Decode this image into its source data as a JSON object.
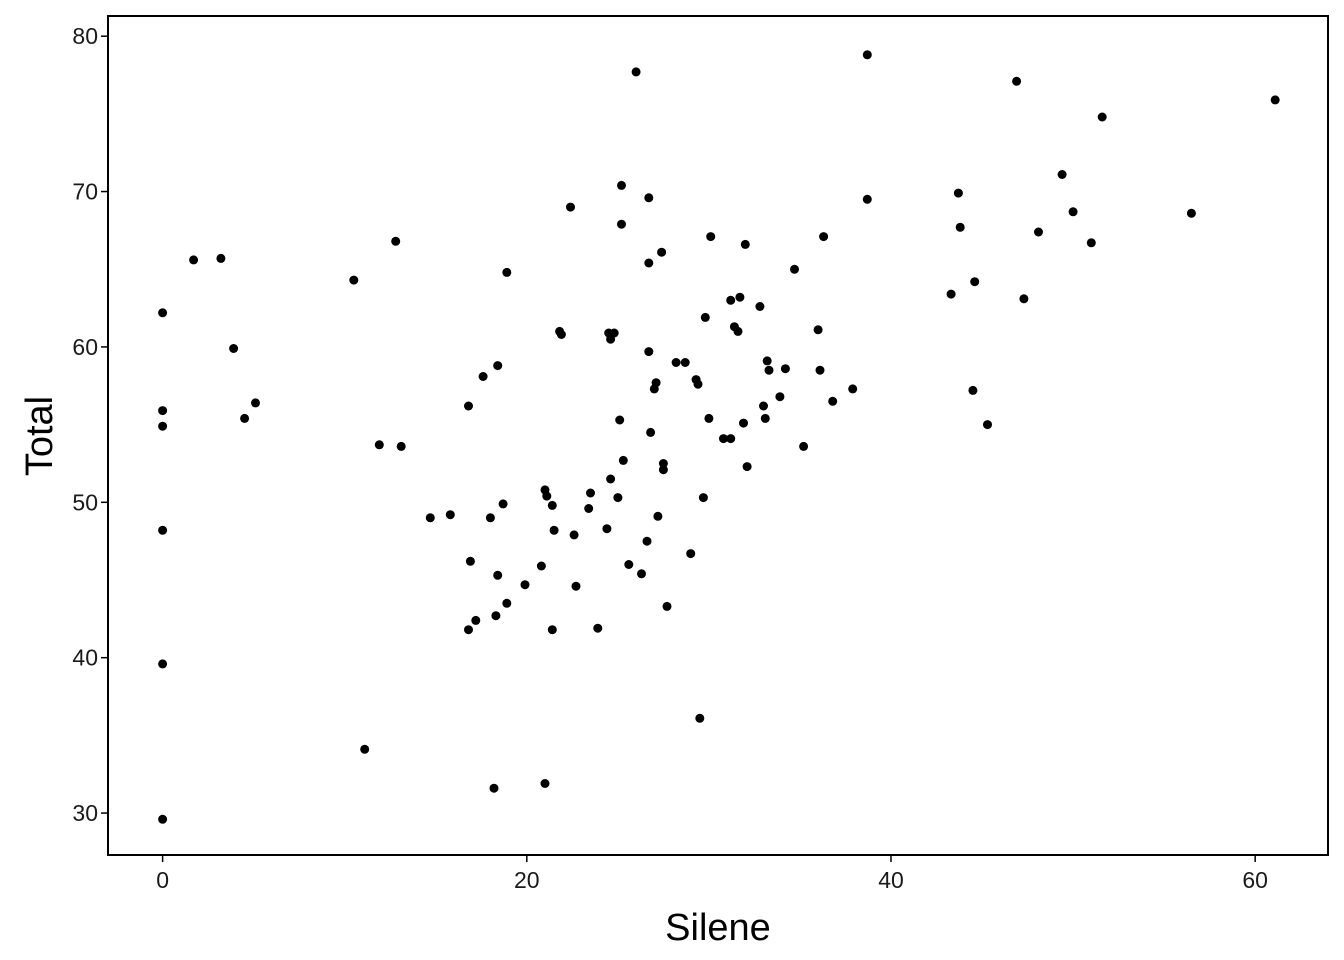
{
  "chart_data": {
    "type": "scatter",
    "xlabel": "Silene",
    "ylabel": "Total",
    "xlim": [
      -3,
      64
    ],
    "ylim": [
      27.3,
      81.3
    ],
    "x_ticks": [
      0,
      20,
      40,
      60
    ],
    "y_ticks": [
      30,
      40,
      50,
      60,
      70,
      80
    ],
    "grid": false,
    "legend": "none",
    "point_color": "#000000",
    "points": [
      [
        0,
        62.2
      ],
      [
        0,
        55.9
      ],
      [
        0,
        54.9
      ],
      [
        0,
        48.2
      ],
      [
        0,
        39.6
      ],
      [
        0,
        29.6
      ],
      [
        1.7,
        65.6
      ],
      [
        3.2,
        65.7
      ],
      [
        3.9,
        59.9
      ],
      [
        4.5,
        55.4
      ],
      [
        5.1,
        56.4
      ],
      [
        10.5,
        64.3
      ],
      [
        11.1,
        34.1
      ],
      [
        11.9,
        53.7
      ],
      [
        12.8,
        66.8
      ],
      [
        13.1,
        53.6
      ],
      [
        14.7,
        49.0
      ],
      [
        15.8,
        49.2
      ],
      [
        16.8,
        56.2
      ],
      [
        16.9,
        46.2
      ],
      [
        16.8,
        41.8
      ],
      [
        17.2,
        42.4
      ],
      [
        17.6,
        58.1
      ],
      [
        18.0,
        49.0
      ],
      [
        18.2,
        31.6
      ],
      [
        18.3,
        42.7
      ],
      [
        18.4,
        45.3
      ],
      [
        18.4,
        58.8
      ],
      [
        18.7,
        49.9
      ],
      [
        18.9,
        43.5
      ],
      [
        18.9,
        64.8
      ],
      [
        19.9,
        44.7
      ],
      [
        20.8,
        45.9
      ],
      [
        21.0,
        50.8
      ],
      [
        21.1,
        50.4
      ],
      [
        21.0,
        31.9
      ],
      [
        21.4,
        49.8
      ],
      [
        21.4,
        41.8
      ],
      [
        21.5,
        48.2
      ],
      [
        21.8,
        61.0
      ],
      [
        21.9,
        60.8
      ],
      [
        22.4,
        69.0
      ],
      [
        22.6,
        47.9
      ],
      [
        22.7,
        44.6
      ],
      [
        23.4,
        49.6
      ],
      [
        23.5,
        50.6
      ],
      [
        23.9,
        41.9
      ],
      [
        24.4,
        48.3
      ],
      [
        24.5,
        60.9
      ],
      [
        24.6,
        60.5
      ],
      [
        24.6,
        51.5
      ],
      [
        24.8,
        60.9
      ],
      [
        25.0,
        50.3
      ],
      [
        25.1,
        55.3
      ],
      [
        25.2,
        67.9
      ],
      [
        25.2,
        70.4
      ],
      [
        25.3,
        52.7
      ],
      [
        25.6,
        46.0
      ],
      [
        26.0,
        77.7
      ],
      [
        26.3,
        45.4
      ],
      [
        26.6,
        47.5
      ],
      [
        26.7,
        59.7
      ],
      [
        26.7,
        65.4
      ],
      [
        26.7,
        69.6
      ],
      [
        26.8,
        54.5
      ],
      [
        27.0,
        57.3
      ],
      [
        27.1,
        57.7
      ],
      [
        27.2,
        49.1
      ],
      [
        27.4,
        66.1
      ],
      [
        27.5,
        52.5
      ],
      [
        27.5,
        52.1
      ],
      [
        27.7,
        43.3
      ],
      [
        28.2,
        59.0
      ],
      [
        28.7,
        59.0
      ],
      [
        29.0,
        46.7
      ],
      [
        29.3,
        57.9
      ],
      [
        29.4,
        57.6
      ],
      [
        29.5,
        36.1
      ],
      [
        29.7,
        50.3
      ],
      [
        29.8,
        61.9
      ],
      [
        30.0,
        55.4
      ],
      [
        30.1,
        67.1
      ],
      [
        30.8,
        54.1
      ],
      [
        31.2,
        54.1
      ],
      [
        31.2,
        63.0
      ],
      [
        31.4,
        61.3
      ],
      [
        31.6,
        61.0
      ],
      [
        31.7,
        63.2
      ],
      [
        31.9,
        55.1
      ],
      [
        32.0,
        66.6
      ],
      [
        32.1,
        52.3
      ],
      [
        32.8,
        62.6
      ],
      [
        33.0,
        56.2
      ],
      [
        33.1,
        55.4
      ],
      [
        33.2,
        59.1
      ],
      [
        33.3,
        58.5
      ],
      [
        33.9,
        56.8
      ],
      [
        34.2,
        58.6
      ],
      [
        34.7,
        65.0
      ],
      [
        35.2,
        53.6
      ],
      [
        36.0,
        61.1
      ],
      [
        36.1,
        58.5
      ],
      [
        36.3,
        67.1
      ],
      [
        36.8,
        56.5
      ],
      [
        37.9,
        57.3
      ],
      [
        38.7,
        78.8
      ],
      [
        38.7,
        69.5
      ],
      [
        43.3,
        63.4
      ],
      [
        43.7,
        69.9
      ],
      [
        43.8,
        67.7
      ],
      [
        44.5,
        57.2
      ],
      [
        44.6,
        64.2
      ],
      [
        45.3,
        55.0
      ],
      [
        46.9,
        77.1
      ],
      [
        47.3,
        63.1
      ],
      [
        48.1,
        67.4
      ],
      [
        49.4,
        71.1
      ],
      [
        50.0,
        68.7
      ],
      [
        51.0,
        66.7
      ],
      [
        51.6,
        74.8
      ],
      [
        56.5,
        68.6
      ],
      [
        61.1,
        75.9
      ]
    ]
  }
}
